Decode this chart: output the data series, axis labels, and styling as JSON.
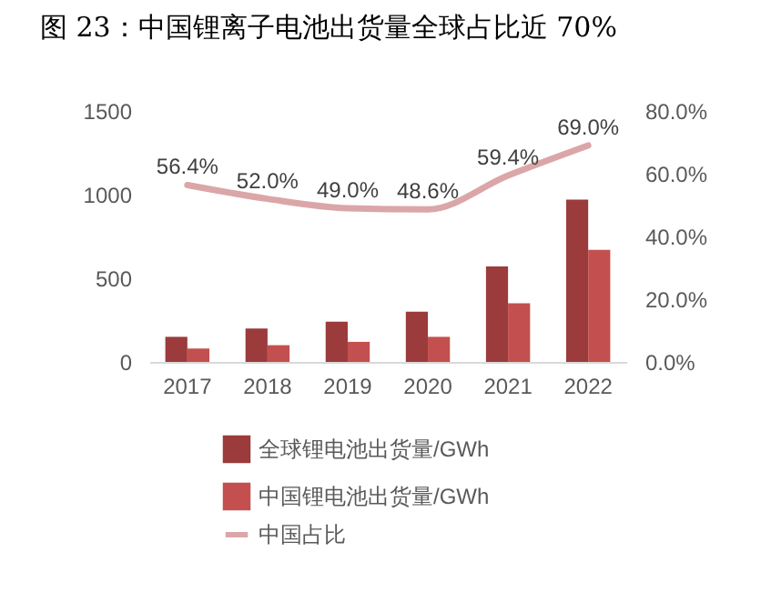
{
  "chart_data": {
    "type": "bar",
    "title": "图 23：中国锂离子电池出货量全球占比近 70%",
    "categories": [
      "2017",
      "2018",
      "2019",
      "2020",
      "2021",
      "2022"
    ],
    "series": [
      {
        "name": "全球锂电池出货量/GWh",
        "color": "#9b3b3b",
        "values": [
          150,
          200,
          240,
          300,
          570,
          970
        ]
      },
      {
        "name": "中国锂电池出货量/GWh",
        "color": "#c3504e",
        "values": [
          80,
          100,
          120,
          150,
          350,
          670
        ]
      },
      {
        "name": "中国占比",
        "type": "line",
        "axis": "y2",
        "color": "#dba6a8",
        "values": [
          56.4,
          52.0,
          49.0,
          48.6,
          59.4,
          69.0
        ],
        "value_labels": [
          "56.4%",
          "52.0%",
          "49.0%",
          "48.6%",
          "59.4%",
          "69.0%"
        ]
      }
    ],
    "ylim": [
      0,
      1500
    ],
    "yticks": [
      0,
      500,
      1000,
      1500
    ],
    "y2lim": [
      0,
      80
    ],
    "y2ticks": [
      {
        "value": 0,
        "label": "0.0%"
      },
      {
        "value": 20,
        "label": "20.0%"
      },
      {
        "value": 40,
        "label": "40.0%"
      },
      {
        "value": 60,
        "label": "60.0%"
      },
      {
        "value": 80,
        "label": "80.0%"
      }
    ],
    "legend": "bottom",
    "grid": false
  }
}
